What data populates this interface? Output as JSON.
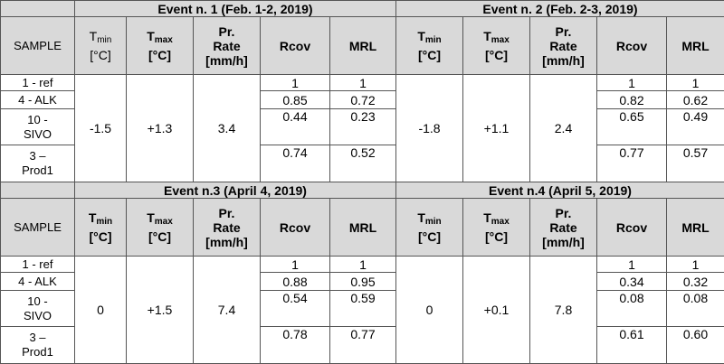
{
  "columns": {
    "sample": "SAMPLE",
    "t_letter": "T",
    "t_min_sub": "min",
    "t_max_sub": "max",
    "unit_c": "[°C]",
    "pr": "Pr.",
    "rate": "Rate",
    "unit_mmh": "[mm/h]",
    "rcov": "Rcov",
    "mrl": "MRL"
  },
  "samples": {
    "s1": "1 - ref",
    "s2": "4 - ALK",
    "s3a": "10 -",
    "s3b": "SIVO",
    "s4a": "3 –",
    "s4b": "Prod1"
  },
  "events": [
    {
      "title": "Event n. 1 (Feb. 1-2, 2019)",
      "tmin": "-1.5",
      "tmax": "+1.3",
      "rate": "3.4",
      "rcov": [
        "1",
        "0.85",
        "0.44",
        "0.74"
      ],
      "mrl": [
        "1",
        "0.72",
        "0.23",
        "0.52"
      ]
    },
    {
      "title": "Event n. 2 (Feb. 2-3, 2019)",
      "tmin": "-1.8",
      "tmax": "+1.1",
      "rate": "2.4",
      "rcov": [
        "1",
        "0.82",
        "0.65",
        "0.77"
      ],
      "mrl": [
        "1",
        "0.62",
        "0.49",
        "0.57"
      ]
    },
    {
      "title": "Event n.3 (April 4, 2019)",
      "tmin": "0",
      "tmax": "+1.5",
      "rate": "7.4",
      "rcov": [
        "1",
        "0.88",
        "0.54",
        "0.78"
      ],
      "mrl": [
        "1",
        "0.95",
        "0.59",
        "0.77"
      ]
    },
    {
      "title": "Event n.4 (April 5, 2019)",
      "tmin": "0",
      "tmax": "+0.1",
      "rate": "7.8",
      "rcov": [
        "1",
        "0.34",
        "0.08",
        "0.61"
      ],
      "mrl": [
        "1",
        "0.32",
        "0.08",
        "0.60"
      ]
    }
  ],
  "colors": {
    "header_bg": "#d9d9d9",
    "border": "#555555",
    "cell_bg": "#ffffff"
  }
}
